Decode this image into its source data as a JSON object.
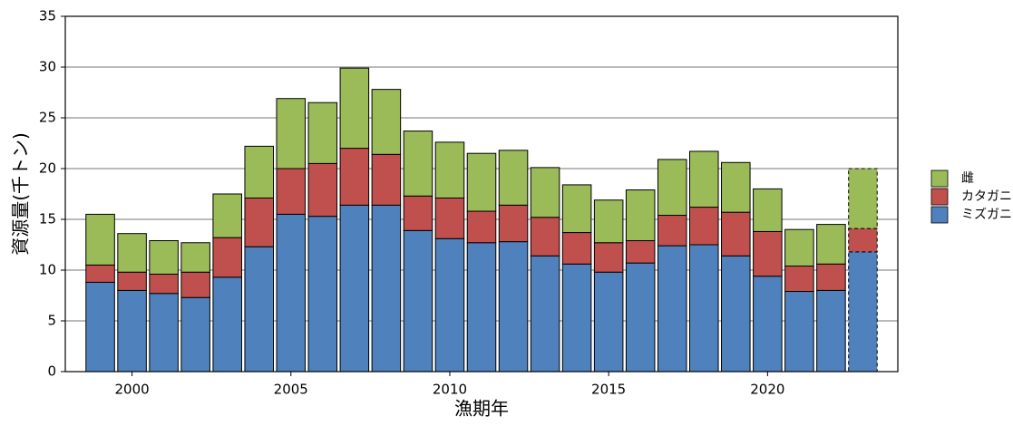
{
  "chart_data": {
    "type": "stacked-bar",
    "x_label": "漁期年",
    "y_label": "資源量(千トン)",
    "x": [
      1999,
      2000,
      2001,
      2002,
      2003,
      2004,
      2005,
      2006,
      2007,
      2008,
      2009,
      2010,
      2011,
      2012,
      2013,
      2014,
      2015,
      2016,
      2017,
      2018,
      2019,
      2020,
      2021,
      2022,
      2023
    ],
    "series": [
      {
        "name": "ミズガニ",
        "color": "#4f81bd",
        "values": [
          8.8,
          8.0,
          7.7,
          7.3,
          9.3,
          12.3,
          15.5,
          15.3,
          16.4,
          16.4,
          13.9,
          13.1,
          12.7,
          12.8,
          11.4,
          10.6,
          9.8,
          10.7,
          12.4,
          12.5,
          11.4,
          9.4,
          7.9,
          8.0,
          11.8
        ]
      },
      {
        "name": "カタガニ",
        "color": "#c0504d",
        "values": [
          1.7,
          1.8,
          1.9,
          2.5,
          3.9,
          4.8,
          4.5,
          5.2,
          5.6,
          5.0,
          3.4,
          4.0,
          3.1,
          3.6,
          3.8,
          3.1,
          2.9,
          2.2,
          3.0,
          3.7,
          4.3,
          4.4,
          2.5,
          2.6,
          2.3
        ]
      },
      {
        "name": "雌",
        "color": "#9bbb59",
        "values": [
          5.0,
          3.8,
          3.3,
          2.9,
          4.3,
          5.1,
          6.9,
          6.0,
          7.9,
          6.4,
          6.4,
          5.5,
          5.7,
          5.4,
          4.9,
          4.7,
          4.2,
          5.0,
          5.5,
          5.5,
          4.9,
          4.2,
          3.6,
          3.9,
          5.9
        ]
      }
    ],
    "dashed_x": [
      2023
    ],
    "xlim": [
      1997.9,
      2024.1
    ],
    "xticks": [
      2000,
      2005,
      2010,
      2015,
      2020
    ],
    "ylim": [
      0,
      35
    ],
    "yticks": [
      0,
      5,
      10,
      15,
      20,
      25,
      30,
      35
    ],
    "grid": true,
    "legend": "right"
  }
}
